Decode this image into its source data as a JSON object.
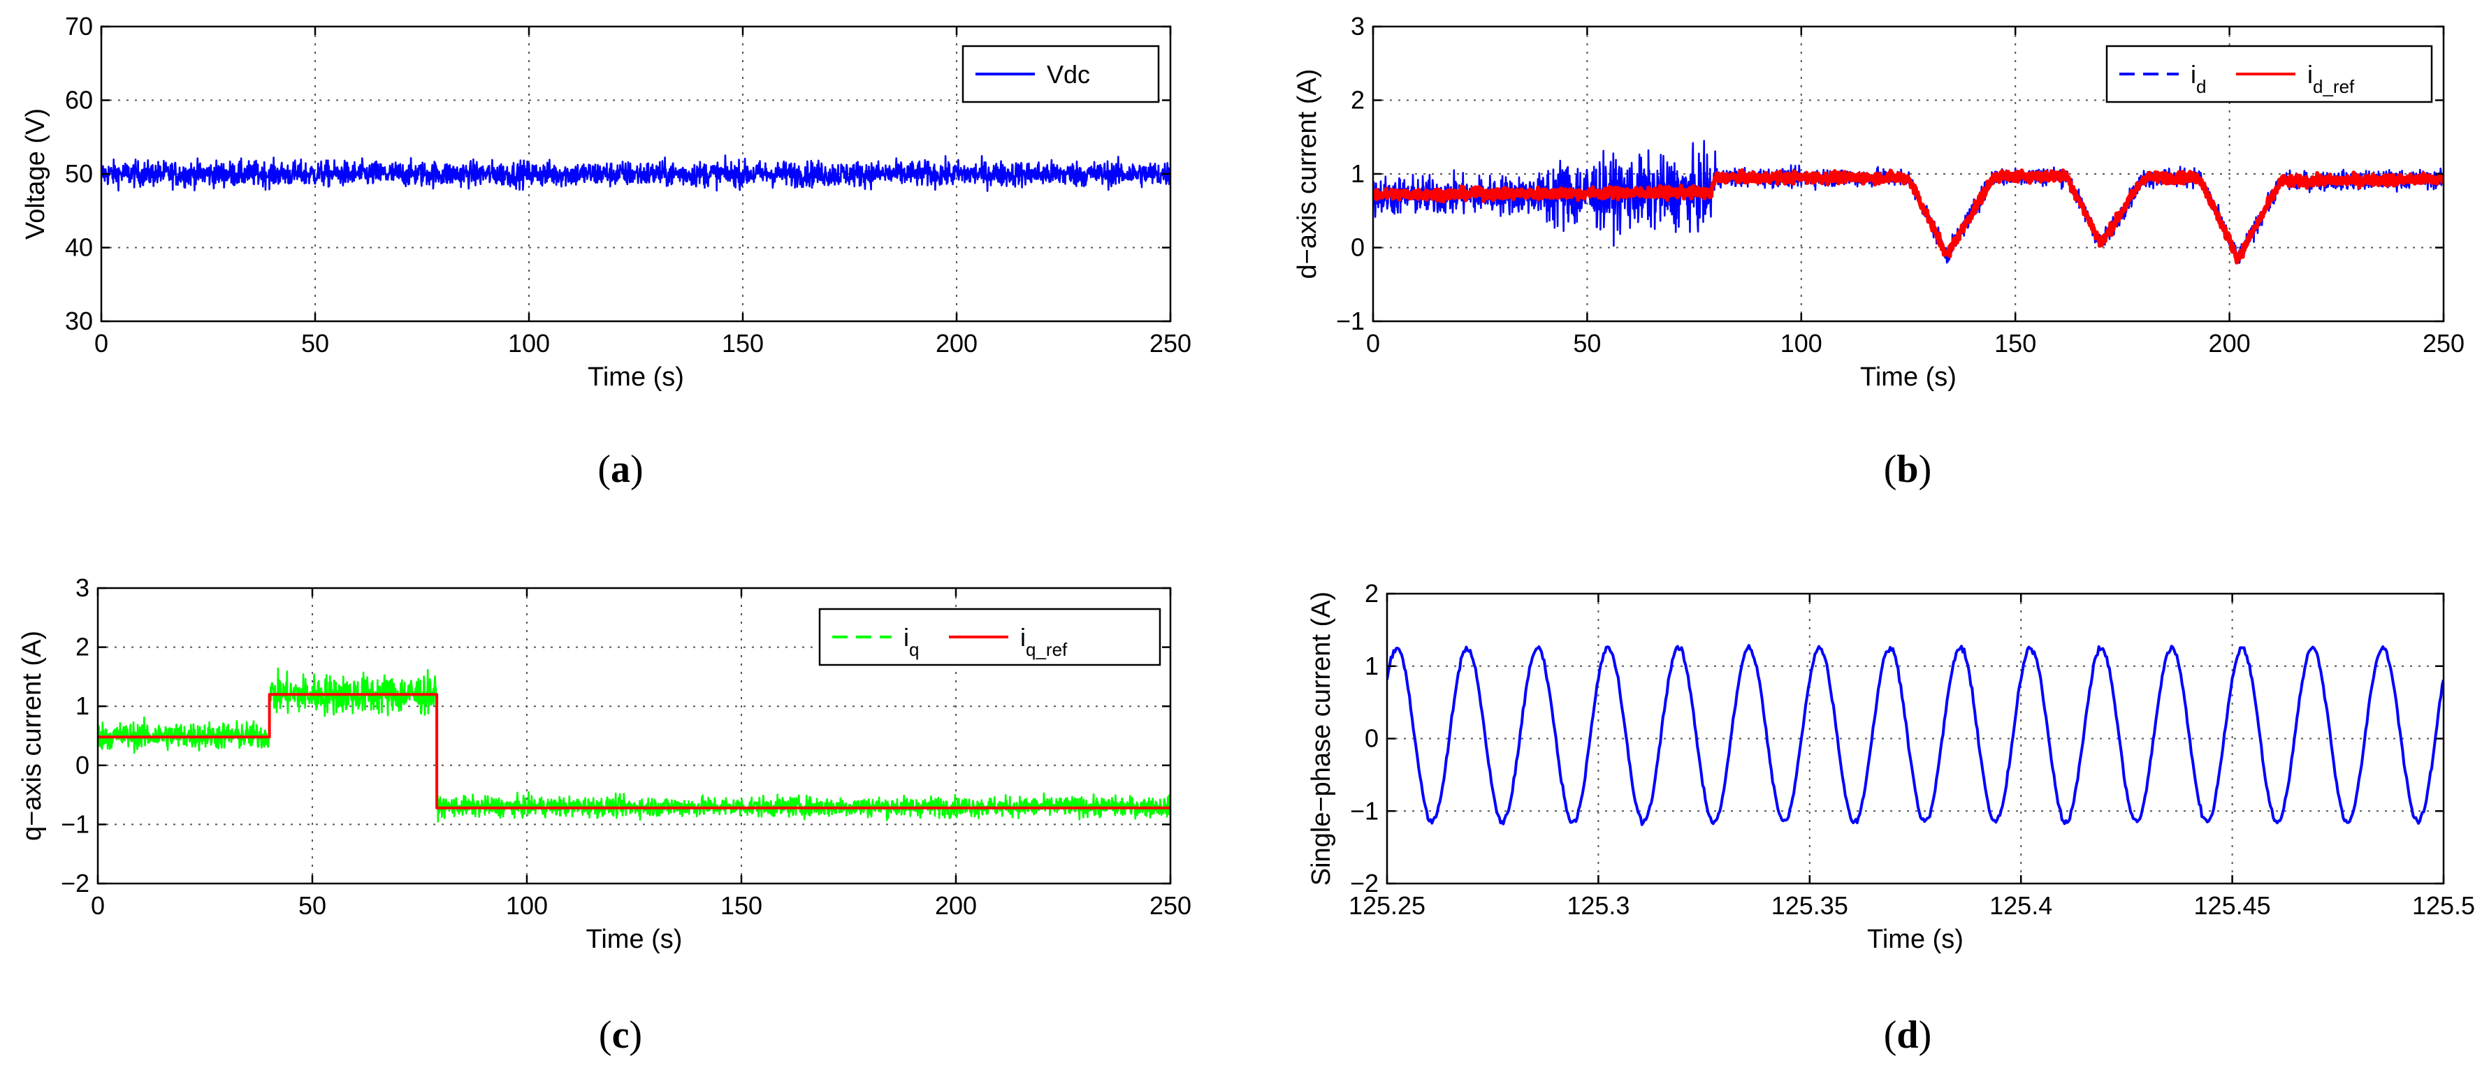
{
  "chart_data": [
    {
      "id": "a",
      "type": "line",
      "caption_letter": "a",
      "xlabel": "Time (s)",
      "ylabel": "Voltage (V)",
      "xlim": [
        0,
        250
      ],
      "ylim": [
        30,
        70
      ],
      "xticks": [
        0,
        50,
        100,
        150,
        200,
        250
      ],
      "yticks": [
        30,
        40,
        50,
        60,
        70
      ],
      "grid": true,
      "legend_position": "top-right",
      "series": [
        {
          "name": "Vdc",
          "legend_label": "Vdc",
          "color": "#0000ff",
          "style": "solid",
          "description": "noisy around 50 V",
          "mean": 50,
          "noise": 2.2
        }
      ]
    },
    {
      "id": "b",
      "type": "line",
      "caption_letter": "b",
      "xlabel": "Time (s)",
      "ylabel": "d−axis current (A)",
      "xlim": [
        0,
        250
      ],
      "ylim": [
        -1,
        3
      ],
      "xticks": [
        0,
        50,
        100,
        150,
        200,
        250
      ],
      "yticks": [
        -1,
        0,
        1,
        2,
        3
      ],
      "grid": true,
      "legend_position": "top-right",
      "series": [
        {
          "name": "i_d",
          "legend_base": "i",
          "legend_sub": "d",
          "color": "#0000ff",
          "style": "dashed",
          "profile": [
            [
              0,
              0.7
            ],
            [
              40,
              0.72
            ],
            [
              79,
              0.75
            ],
            [
              80,
              0.95
            ],
            [
              125,
              0.95
            ],
            [
              134,
              -0.1
            ],
            [
              145,
              0.97
            ],
            [
              162,
              0.97
            ],
            [
              170,
              0.05
            ],
            [
              180,
              0.95
            ],
            [
              193,
              0.95
            ],
            [
              202,
              -0.15
            ],
            [
              212,
              0.9
            ],
            [
              250,
              0.93
            ]
          ],
          "noise_segments": [
            [
              0,
              40,
              0.25
            ],
            [
              40,
              80,
              0.45
            ],
            [
              80,
              250,
              0.12
            ]
          ]
        },
        {
          "name": "i_d_ref",
          "legend_base": "i",
          "legend_sub": "d_ref",
          "color": "#ff0000",
          "style": "solid",
          "profile": [
            [
              0,
              0.72
            ],
            [
              79,
              0.75
            ],
            [
              80,
              0.95
            ],
            [
              125,
              0.95
            ],
            [
              134,
              -0.1
            ],
            [
              145,
              0.97
            ],
            [
              162,
              0.97
            ],
            [
              170,
              0.05
            ],
            [
              180,
              0.95
            ],
            [
              193,
              0.95
            ],
            [
              202,
              -0.15
            ],
            [
              212,
              0.9
            ],
            [
              250,
              0.93
            ]
          ],
          "noise": 0.07
        }
      ]
    },
    {
      "id": "c",
      "type": "line",
      "caption_letter": "c",
      "xlabel": "Time (s)",
      "ylabel": "q−axis current (A)",
      "xlim": [
        0,
        250
      ],
      "ylim": [
        -2,
        3
      ],
      "xticks": [
        0,
        50,
        100,
        150,
        200,
        250
      ],
      "yticks": [
        -2,
        -1,
        0,
        1,
        2,
        3
      ],
      "grid": true,
      "legend_position": "top-right",
      "series": [
        {
          "name": "i_q",
          "legend_base": "i",
          "legend_sub": "q",
          "color": "#00ff00",
          "style": "dashed",
          "profile": [
            [
              0,
              0.5
            ],
            [
              39.9,
              0.5
            ],
            [
              40,
              1.2
            ],
            [
              78.9,
              1.2
            ],
            [
              79,
              -0.7
            ],
            [
              250,
              -0.7
            ]
          ],
          "noise_segments": [
            [
              0,
              40,
              0.22
            ],
            [
              40,
              79,
              0.32
            ],
            [
              79,
              250,
              0.16
            ]
          ]
        },
        {
          "name": "i_q_ref",
          "legend_base": "i",
          "legend_sub": "q_ref",
          "color": "#ff0000",
          "style": "solid",
          "steps": [
            [
              0,
              0.48
            ],
            [
              40,
              1.2
            ],
            [
              79,
              -0.72
            ],
            [
              250,
              -0.72
            ]
          ]
        }
      ]
    },
    {
      "id": "d",
      "type": "line",
      "caption_letter": "d",
      "xlabel": "Time (s)",
      "ylabel": "Single−phase current (A)",
      "xlim": [
        125.25,
        125.5
      ],
      "ylim": [
        -2,
        2
      ],
      "xticks": [
        125.25,
        125.3,
        125.35,
        125.4,
        125.45,
        125.5
      ],
      "xtick_labels": [
        "125.25",
        "125.3",
        "125.35",
        "125.4",
        "125.45",
        "125.5"
      ],
      "yticks": [
        -2,
        -1,
        0,
        1,
        2
      ],
      "grid": true,
      "series": [
        {
          "name": "current",
          "color": "#0000ff",
          "style": "solid",
          "amplitude": 1.2,
          "offset": 0.05,
          "frequency_hz": 60,
          "phase_deg": 40
        }
      ]
    }
  ]
}
